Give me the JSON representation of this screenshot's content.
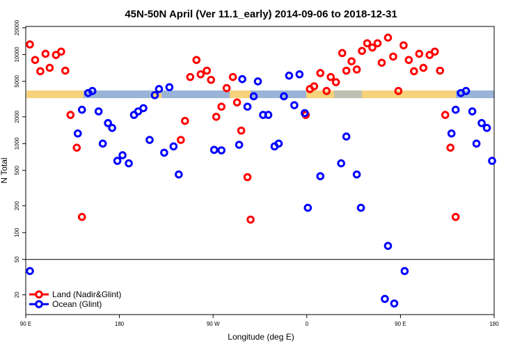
{
  "chart_data": {
    "type": "scatter",
    "title": "45N-50N April (Ver 11.1_early)   2014-09-06 to 2018-12-31",
    "x_label": "Longitude (deg E)",
    "y_label": "N Total",
    "xlim": [
      90,
      540
    ],
    "ylim": [
      12,
      20700
    ],
    "log_y": true,
    "hline": 50,
    "legend": "bottom-left",
    "xticks": [
      {
        "value": 90,
        "label": "90 E"
      },
      180,
      {
        "value": 270,
        "label": "90 W"
      },
      {
        "value": 360,
        "label": "0"
      },
      {
        "value": 450,
        "label": "90 E"
      },
      {
        "value": 540,
        "label": "180"
      }
    ],
    "yticks": [
      20,
      50,
      100,
      200,
      500,
      1000,
      2000,
      5000,
      10000,
      20000
    ],
    "series": [
      {
        "name": "Land (Nadir&Glint)",
        "color": "#ff0000",
        "x": [
          94,
          99,
          104,
          109,
          113,
          119,
          124,
          128,
          133,
          139,
          144,
          239,
          243,
          248,
          254,
          258,
          264,
          268,
          273,
          278,
          283,
          289,
          293,
          297,
          303,
          306,
          359,
          363,
          367,
          373,
          379,
          383,
          388,
          394,
          398,
          403,
          408,
          413,
          418,
          423,
          428,
          432,
          438,
          443,
          448,
          453,
          458,
          463,
          468,
          472,
          478,
          483,
          488,
          493,
          498,
          503
        ],
        "values": [
          13000,
          8700,
          6500,
          10200,
          7100,
          9900,
          10800,
          6600,
          2100,
          900,
          150,
          1100,
          1800,
          5600,
          8700,
          6000,
          6600,
          5200,
          2000,
          2600,
          4200,
          5600,
          2900,
          1400,
          420,
          140,
          2100,
          4100,
          4400,
          6200,
          3900,
          5600,
          4900,
          10400,
          6600,
          8400,
          6800,
          11000,
          13400,
          12000,
          13400,
          8100,
          15500,
          9500,
          3900,
          12700,
          8700,
          6500,
          10200,
          7100,
          9900,
          10800,
          6600,
          2100,
          900,
          150
        ]
      },
      {
        "name": "Ocean (Glint)",
        "color": "#0000ff",
        "x": [
          94,
          140,
          144,
          150,
          154,
          160,
          164,
          169,
          173,
          178,
          183,
          189,
          194,
          198,
          203,
          209,
          214,
          218,
          223,
          228,
          232,
          237,
          271,
          278,
          295,
          298,
          303,
          309,
          313,
          318,
          323,
          329,
          333,
          338,
          343,
          348,
          353,
          358,
          361,
          373,
          393,
          398,
          408,
          412,
          435,
          438,
          444,
          454,
          499,
          503,
          508,
          513,
          519,
          523,
          528,
          533,
          538
        ],
        "values": [
          37,
          1300,
          2400,
          3700,
          3900,
          2300,
          1000,
          1700,
          1500,
          640,
          740,
          600,
          2100,
          2300,
          2500,
          1100,
          3500,
          4100,
          790,
          4300,
          930,
          450,
          850,
          840,
          970,
          5300,
          2600,
          3400,
          5000,
          2100,
          2100,
          930,
          1000,
          3400,
          5800,
          2700,
          6000,
          2200,
          190,
          430,
          600,
          1200,
          450,
          190,
          18,
          71,
          16,
          37,
          1300,
          2400,
          3700,
          3900,
          2300,
          1000,
          1700,
          1500,
          640
        ]
      }
    ]
  }
}
